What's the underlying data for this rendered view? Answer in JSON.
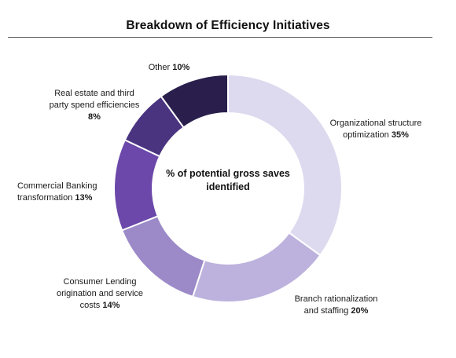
{
  "chart_data": {
    "type": "pie",
    "title": "Breakdown of Efficiency Initiatives",
    "center_label": [
      "% of potential",
      "gross saves",
      "identified"
    ],
    "slices": [
      {
        "label_lines": [
          "Organizational structure",
          "optimization"
        ],
        "pct_label": "35%",
        "value": 35,
        "color": "#dddaef"
      },
      {
        "label_lines": [
          "Branch rationalization",
          "and staffing"
        ],
        "pct_label": "20%",
        "value": 20,
        "color": "#bdb2dd"
      },
      {
        "label_lines": [
          "Consumer Lending",
          "origination and service",
          "costs"
        ],
        "pct_label": "14%",
        "value": 14,
        "color": "#9c8ac8"
      },
      {
        "label_lines": [
          "Commercial Banking",
          "transformation"
        ],
        "pct_label": "13%",
        "value": 13,
        "color": "#6b48a9"
      },
      {
        "label_lines": [
          "Real estate and third",
          "party spend efficiencies"
        ],
        "pct_label": "8%",
        "value": 8,
        "color": "#4a3480"
      },
      {
        "label_lines": [
          "Other"
        ],
        "pct_label": "10%",
        "value": 10,
        "color": "#2a1f4c"
      }
    ]
  }
}
